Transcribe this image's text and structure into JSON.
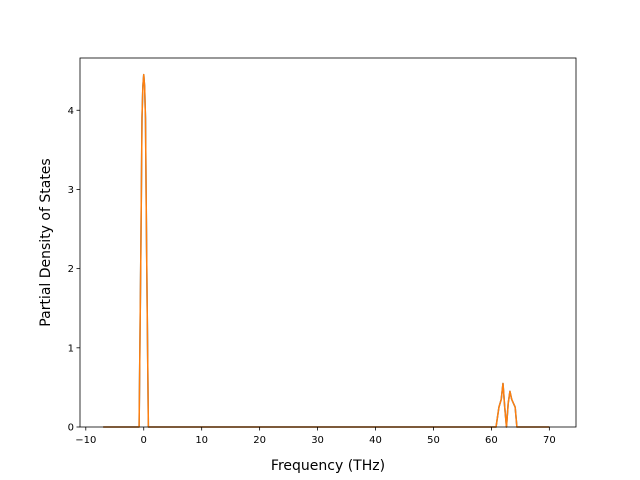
{
  "chart_data": {
    "type": "line",
    "title": "",
    "xlabel": "Frequency (THz)",
    "ylabel": "Partial Density of States",
    "xlim": [
      -11,
      74.6
    ],
    "ylim": [
      0,
      4.66
    ],
    "xticks": [
      -10,
      0,
      10,
      20,
      30,
      40,
      50,
      60,
      70
    ],
    "yticks": [
      0,
      1,
      2,
      3,
      4
    ],
    "grid": false,
    "legend": "none",
    "series": [
      {
        "color": "#1f77b4",
        "x": [
          -7.0,
          -0.8,
          -0.5,
          -0.3,
          -0.15,
          0.0,
          0.15,
          0.3,
          0.5,
          0.8,
          60.8,
          61.3,
          61.7,
          62.0,
          62.3,
          62.6,
          62.9,
          63.2,
          63.5,
          63.8,
          64.1,
          64.4,
          64.7,
          70.0
        ],
        "y": [
          0,
          0,
          2.2,
          3.9,
          4.3,
          4.45,
          4.3,
          3.9,
          2.2,
          0,
          0,
          0.25,
          0.35,
          0.55,
          0.25,
          0.0,
          0.3,
          0.45,
          0.35,
          0.3,
          0.25,
          0.0,
          0,
          0
        ]
      },
      {
        "color": "#ff7f0e",
        "x": [
          -7.0,
          -0.8,
          -0.5,
          -0.3,
          -0.15,
          0.0,
          0.15,
          0.3,
          0.5,
          0.8,
          60.8,
          61.3,
          61.7,
          62.0,
          62.3,
          62.6,
          62.9,
          63.2,
          63.5,
          63.8,
          64.1,
          64.4,
          64.7,
          70.0
        ],
        "y": [
          0,
          0,
          2.2,
          3.9,
          4.3,
          4.45,
          4.3,
          3.9,
          2.2,
          0,
          0,
          0.25,
          0.35,
          0.55,
          0.25,
          0.0,
          0.3,
          0.45,
          0.35,
          0.3,
          0.25,
          0.0,
          0,
          0
        ]
      }
    ]
  }
}
